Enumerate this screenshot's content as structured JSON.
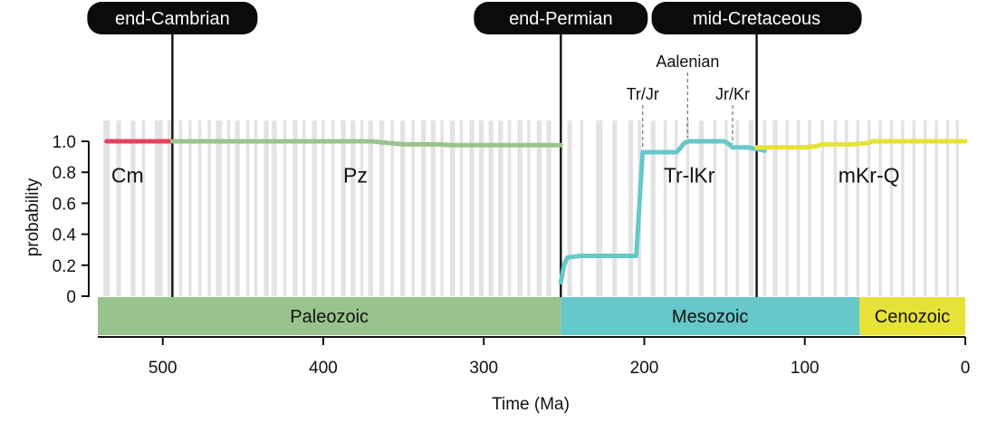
{
  "chart_data": {
    "type": "line",
    "xlabel": "Time (Ma)",
    "ylabel": "probability",
    "xlim": [
      540,
      0
    ],
    "ylim": [
      0,
      1.0
    ],
    "x_ticks": [
      500,
      400,
      300,
      200,
      100,
      0
    ],
    "y_ticks": [
      {
        "value": 0,
        "label": "0"
      },
      {
        "value": 0.2,
        "label": "0.2"
      },
      {
        "value": 0.4,
        "label": "0.4"
      },
      {
        "value": 0.6,
        "label": "0.6"
      },
      {
        "value": 0.8,
        "label": "0.8"
      },
      {
        "value": 1.0,
        "label": "1.0"
      }
    ],
    "boundaries": [
      {
        "label": "end-Cambrian",
        "x": 494
      },
      {
        "label": "end-Permian",
        "x": 252
      },
      {
        "label": "mid-Cretaceous",
        "x": 130
      }
    ],
    "secondary_markers": [
      {
        "label": "Tr/Jr",
        "x": 201,
        "y": 0.93
      },
      {
        "label": "Aalenian",
        "x": 173,
        "y": 1.0
      },
      {
        "label": "Jr/Kr",
        "x": 145,
        "y": 0.96
      }
    ],
    "eras": [
      {
        "name": "Paleozoic",
        "start": 541,
        "end": 252,
        "color": "#99c38c"
      },
      {
        "name": "Mesozoic",
        "start": 252,
        "end": 66,
        "color": "#66c8ca"
      },
      {
        "name": "Cenozoic",
        "start": 66,
        "end": 0,
        "color": "#e6e237"
      }
    ],
    "regions": [
      {
        "label": "Cm",
        "x": 522,
        "y": 0.78
      },
      {
        "label": "Pz",
        "x": 380,
        "y": 0.78
      },
      {
        "label": "Tr-lKr",
        "x": 172,
        "y": 0.78
      },
      {
        "label": "mKr-Q",
        "x": 60,
        "y": 0.78
      }
    ],
    "series": [
      {
        "color": "#e8415e",
        "x": [
          535,
          494
        ],
        "y": [
          1.0,
          1.0
        ]
      },
      {
        "color": "#99c38c",
        "x": [
          494,
          370,
          360,
          350,
          330,
          320,
          300,
          280,
          252
        ],
        "y": [
          1.0,
          1.0,
          0.99,
          0.98,
          0.98,
          0.975,
          0.975,
          0.975,
          0.975
        ]
      },
      {
        "color": "#66c8ca",
        "x": [
          252,
          250,
          248,
          240,
          205,
          203,
          201,
          190,
          180,
          178,
          175,
          172,
          150,
          147,
          145,
          135,
          130,
          125
        ],
        "y": [
          0.09,
          0.2,
          0.25,
          0.26,
          0.26,
          0.6,
          0.93,
          0.93,
          0.93,
          0.95,
          0.99,
          1.0,
          1.0,
          0.98,
          0.96,
          0.96,
          0.95,
          0.94
        ]
      },
      {
        "color": "#e6e237",
        "x": [
          130,
          120,
          100,
          92,
          90,
          70,
          60,
          58,
          40,
          0
        ],
        "y": [
          0.96,
          0.96,
          0.96,
          0.97,
          0.98,
          0.98,
          0.99,
          1.0,
          1.0,
          1.0
        ]
      }
    ],
    "background_bands": [
      [
        537,
        533
      ],
      [
        529,
        526
      ],
      [
        520,
        517
      ],
      [
        513,
        511
      ],
      [
        505,
        500
      ],
      [
        497,
        494
      ],
      [
        490,
        488
      ],
      [
        484,
        482
      ],
      [
        478,
        476
      ],
      [
        472,
        470
      ],
      [
        467,
        463
      ],
      [
        460,
        458
      ],
      [
        455,
        452
      ],
      [
        448,
        446
      ],
      [
        443,
        441
      ],
      [
        437,
        434
      ],
      [
        432,
        429
      ],
      [
        425,
        423
      ],
      [
        419,
        416
      ],
      [
        413,
        411
      ],
      [
        407,
        404
      ],
      [
        401,
        399
      ],
      [
        395,
        393
      ],
      [
        389,
        386
      ],
      [
        383,
        380
      ],
      [
        377,
        375
      ],
      [
        372,
        369
      ],
      [
        365,
        362
      ],
      [
        358,
        356
      ],
      [
        352,
        349
      ],
      [
        345,
        343
      ],
      [
        339,
        336
      ],
      [
        333,
        330
      ],
      [
        327,
        325
      ],
      [
        321,
        318
      ],
      [
        315,
        313
      ],
      [
        309,
        306
      ],
      [
        303,
        300
      ],
      [
        297,
        294
      ],
      [
        291,
        288
      ],
      [
        285,
        283
      ],
      [
        279,
        276
      ],
      [
        273,
        271
      ],
      [
        267,
        264
      ],
      [
        261,
        258
      ],
      [
        248,
        245
      ],
      [
        240,
        238
      ],
      [
        230,
        226
      ],
      [
        220,
        217
      ],
      [
        210,
        207
      ],
      [
        204,
        202
      ],
      [
        196,
        193
      ],
      [
        188,
        186
      ],
      [
        181,
        179
      ],
      [
        174,
        172
      ],
      [
        166,
        163
      ],
      [
        157,
        155
      ],
      [
        150,
        148
      ],
      [
        143,
        141
      ],
      [
        135,
        132
      ],
      [
        126,
        124
      ],
      [
        120,
        117
      ],
      [
        112,
        110
      ],
      [
        105,
        103
      ],
      [
        98,
        96
      ],
      [
        90,
        88
      ],
      [
        82,
        80
      ],
      [
        75,
        73
      ],
      [
        68,
        66
      ],
      [
        61,
        59
      ],
      [
        54,
        52
      ],
      [
        47,
        45
      ],
      [
        40,
        38
      ],
      [
        33,
        31
      ],
      [
        26,
        24
      ],
      [
        19,
        17
      ],
      [
        12,
        10
      ],
      [
        6,
        4
      ]
    ]
  }
}
